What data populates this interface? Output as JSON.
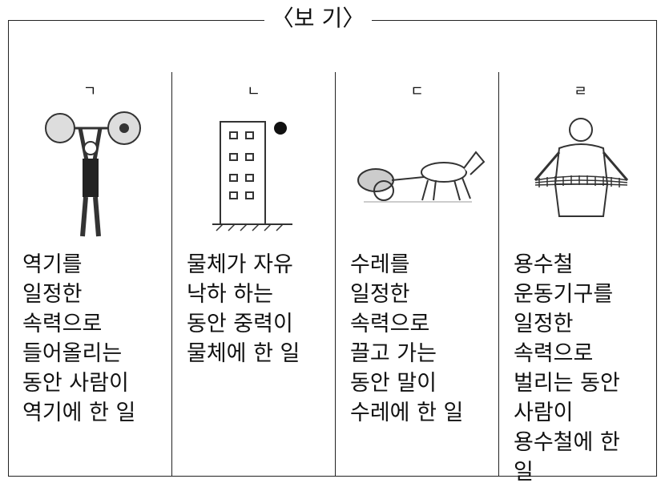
{
  "title": "〈보 기〉",
  "columns": [
    {
      "label": "ㄱ",
      "description": [
        "역기를",
        "일정한",
        "속력으로",
        "들어올리는",
        "동안 사람이",
        "역기에 한 일"
      ]
    },
    {
      "label": "ㄴ",
      "description": [
        "물체가 자유",
        "낙하 하는",
        "동안 중력이",
        "물체에 한 일"
      ]
    },
    {
      "label": "ㄷ",
      "description": [
        "수레를",
        "일정한",
        "속력으로",
        "끌고 가는",
        "동안 말이",
        "수레에 한 일"
      ]
    },
    {
      "label": "ㄹ",
      "description": [
        "용수철",
        "운동기구를",
        "일정한",
        "속력으로",
        "벌리는 동안",
        "사람이",
        "용수철에 한",
        "일"
      ]
    }
  ]
}
